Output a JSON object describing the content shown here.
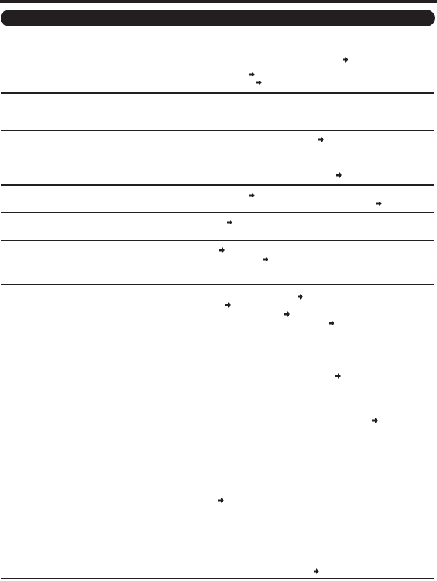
{
  "page": {
    "title": ""
  },
  "table": {
    "header": {
      "col1": "",
      "col2": ""
    },
    "rows": [
      {
        "label": "",
        "text": ""
      },
      {
        "label": "",
        "text": ""
      },
      {
        "label": "",
        "text": ""
      },
      {
        "label": "",
        "text": ""
      },
      {
        "label": "",
        "text": ""
      },
      {
        "label": "",
        "text": ""
      },
      {
        "label": "",
        "text": ""
      }
    ]
  },
  "icons": {
    "reference_arrow": "arrow-right-icon"
  },
  "colors": {
    "ink": "#231f20",
    "background": "#ffffff"
  }
}
